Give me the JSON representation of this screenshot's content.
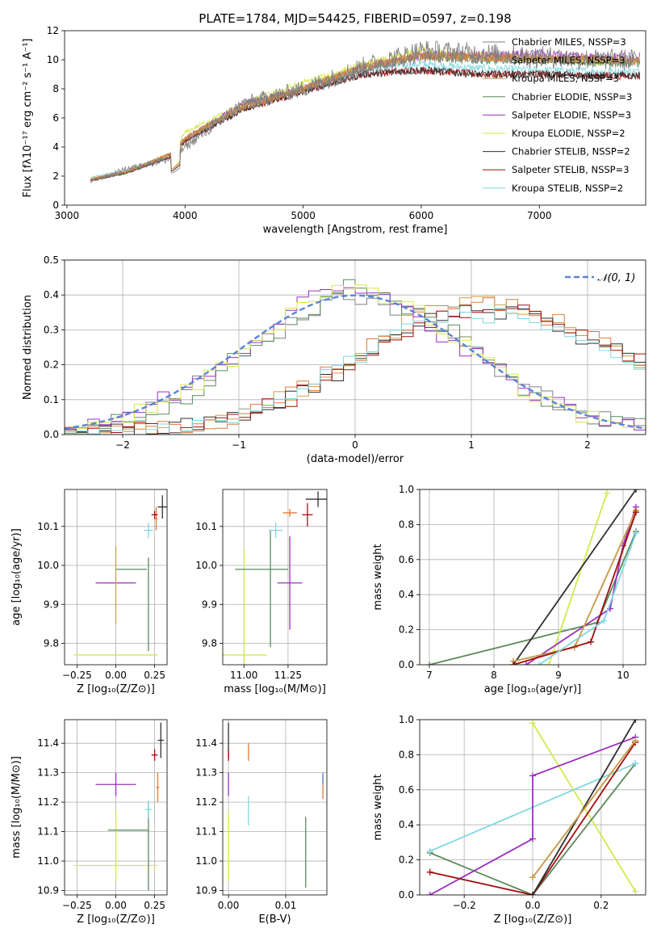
{
  "chart_data": [
    {
      "type": "line",
      "title": "PLATE=1784, MJD=54425, FIBERID=0597, z=0.198",
      "xlabel": "wavelength [Angstrom, rest frame]",
      "ylabel": "Flux [fλ10⁻¹⁷ erg cm⁻² s⁻¹ A⁻¹]",
      "xlim": [
        2980,
        7900
      ],
      "ylim": [
        0,
        12
      ],
      "xticks": [
        "3000",
        "4000",
        "5000",
        "6000",
        "7000"
      ],
      "yticks": [
        "0",
        "2",
        "4",
        "6",
        "8",
        "10",
        "12"
      ],
      "legend_position": "right",
      "spectrum_note_points_x": [
        3200,
        3500,
        3900,
        4000,
        4500,
        5000,
        5500,
        6000,
        6500,
        7000,
        7500,
        7800
      ],
      "series": [
        {
          "name": "Chabrier MILES, NSSP=3",
          "color": "#808080",
          "y": [
            1.6,
            2.5,
            3.2,
            4.0,
            7.0,
            8.0,
            9.5,
            10.6,
            10.4,
            10.2,
            10.0,
            10.0
          ]
        },
        {
          "name": "Salpeter MILES, NSSP=3",
          "color": "#e07b39",
          "y": [
            1.8,
            2.3,
            3.6,
            4.6,
            6.8,
            8.0,
            9.5,
            10.3,
            10.2,
            10.1,
            10.0,
            9.9
          ]
        },
        {
          "name": "Kroupa MILES, NSSP=3",
          "color": "#c8a050",
          "y": [
            1.8,
            2.3,
            3.6,
            4.6,
            6.8,
            8.0,
            9.5,
            10.3,
            10.2,
            10.1,
            10.0,
            9.9
          ]
        },
        {
          "name": "Chabrier ELODIE, NSSP=3",
          "color": "#5a8a5a",
          "y": [
            1.8,
            2.2,
            3.6,
            4.6,
            6.8,
            8.0,
            9.4,
            10.2,
            10.0,
            10.0,
            9.8,
            9.8
          ]
        },
        {
          "name": "Salpeter ELODIE, NSSP=3",
          "color": "#9a30c0",
          "y": [
            1.8,
            2.3,
            3.6,
            4.6,
            7.0,
            8.0,
            9.4,
            10.3,
            10.3,
            10.4,
            10.2,
            10.2
          ]
        },
        {
          "name": "Kroupa ELODIE, NSSP=2",
          "color": "#d4e84a",
          "y": [
            1.8,
            2.3,
            3.6,
            5.0,
            7.0,
            8.4,
            9.6,
            10.6,
            10.3,
            10.0,
            9.9,
            9.9
          ]
        },
        {
          "name": "Chabrier STELIB, NSSP=2",
          "color": "#303030",
          "y": [
            1.7,
            2.2,
            3.4,
            4.4,
            6.6,
            7.8,
            9.0,
            9.3,
            9.0,
            9.0,
            8.9,
            8.9
          ]
        },
        {
          "name": "Salpeter STELIB, NSSP=3",
          "color": "#a01010",
          "y": [
            1.7,
            2.2,
            3.4,
            4.4,
            6.6,
            7.8,
            9.0,
            9.3,
            9.0,
            9.0,
            8.9,
            8.9
          ]
        },
        {
          "name": "Kroupa STELIB, NSSP=2",
          "color": "#80d8e0",
          "y": [
            1.9,
            2.4,
            3.6,
            4.6,
            6.9,
            8.0,
            9.4,
            9.7,
            9.4,
            9.3,
            9.2,
            9.2
          ]
        }
      ]
    },
    {
      "type": "line",
      "xlabel": "(data-model)/error",
      "ylabel": "Normed distribution",
      "xlim": [
        -2.5,
        2.5
      ],
      "ylim": [
        0,
        0.5
      ],
      "xticks": [
        "−2",
        "−1",
        "0",
        "1",
        "2"
      ],
      "yticks": [
        "0.0",
        "0.1",
        "0.2",
        "0.3",
        "0.4",
        "0.5"
      ],
      "legend": "𝒩(0, 1)",
      "legend_position": "top-right",
      "gaussian_color": "#5b84d6",
      "x": [
        -2.5,
        -2.0,
        -1.5,
        -1.0,
        -0.5,
        0.0,
        0.5,
        1.0,
        1.5,
        2.0,
        2.5
      ],
      "series": [
        {
          "name": "Chabrier MILES",
          "color": "#808080",
          "values": [
            0.01,
            0.05,
            0.12,
            0.23,
            0.33,
            0.4,
            0.35,
            0.25,
            0.13,
            0.06,
            0.03
          ]
        },
        {
          "name": "Salpeter MILES",
          "color": "#e07b39",
          "values": [
            0.0,
            0.01,
            0.02,
            0.05,
            0.12,
            0.22,
            0.33,
            0.38,
            0.36,
            0.28,
            0.2
          ]
        },
        {
          "name": "Kroupa MILES",
          "color": "#c8a050",
          "values": [
            0.0,
            0.01,
            0.02,
            0.05,
            0.12,
            0.22,
            0.33,
            0.38,
            0.36,
            0.28,
            0.2
          ]
        },
        {
          "name": "Chabrier ELODIE",
          "color": "#5a8a5a",
          "values": [
            0.01,
            0.04,
            0.1,
            0.22,
            0.33,
            0.43,
            0.36,
            0.26,
            0.12,
            0.05,
            0.02
          ]
        },
        {
          "name": "Salpeter ELODIE",
          "color": "#9a30c0",
          "values": [
            0.01,
            0.06,
            0.12,
            0.24,
            0.38,
            0.42,
            0.34,
            0.24,
            0.12,
            0.05,
            0.02
          ]
        },
        {
          "name": "Kroupa ELODIE",
          "color": "#d4e84a",
          "values": [
            0.01,
            0.05,
            0.12,
            0.22,
            0.35,
            0.44,
            0.36,
            0.24,
            0.11,
            0.05,
            0.02
          ]
        },
        {
          "name": "Chabrier STELIB",
          "color": "#303030",
          "values": [
            0.0,
            0.01,
            0.02,
            0.05,
            0.11,
            0.2,
            0.31,
            0.36,
            0.35,
            0.27,
            0.22
          ]
        },
        {
          "name": "Salpeter STELIB",
          "color": "#a01010",
          "values": [
            0.0,
            0.01,
            0.02,
            0.05,
            0.11,
            0.2,
            0.31,
            0.36,
            0.35,
            0.27,
            0.22
          ]
        },
        {
          "name": "Kroupa STELIB",
          "color": "#80d8e0",
          "values": [
            0.0,
            0.01,
            0.02,
            0.05,
            0.12,
            0.22,
            0.32,
            0.35,
            0.33,
            0.27,
            0.18
          ]
        }
      ]
    },
    {
      "type": "scatter",
      "xlabel": "Z [log₁₀(Z/Z⊙)]",
      "ylabel": "age  [log₁₀(age/yr)]",
      "xlim": [
        -0.33,
        0.33
      ],
      "ylim": [
        9.745,
        10.195
      ],
      "xticks": [
        "−0.25",
        "0.00",
        "0.25"
      ],
      "yticks": [
        "9.8",
        "9.9",
        "10.0",
        "10.1"
      ],
      "points": [
        {
          "color": "#d4e84a",
          "x": 0.0,
          "y": 9.77,
          "xerr": 0.27,
          "yerr": 0.0
        },
        {
          "color": "#9a30c0",
          "x": 0.0,
          "y": 9.955,
          "xerr": 0.13,
          "yerr": 0.0
        },
        {
          "color": "#5a8a5a",
          "x": 0.1,
          "y": 9.99,
          "xerr": 0.1,
          "yerr": 0.0
        },
        {
          "color": "#c8a050",
          "x": 0.0,
          "y": 9.95,
          "xerr": 0.0,
          "yerr": 0.1
        },
        {
          "color": "#5a8a5a",
          "x": 0.21,
          "y": 9.9,
          "xerr": 0.0,
          "yerr": 0.12
        },
        {
          "color": "#80d8e0",
          "x": 0.21,
          "y": 10.09,
          "xerr": 0.03,
          "yerr": 0.02
        },
        {
          "color": "#e07b39",
          "x": 0.26,
          "y": 10.12,
          "xerr": 0.01,
          "yerr": 0.03
        },
        {
          "color": "#a01010",
          "x": 0.25,
          "y": 10.13,
          "xerr": 0.02,
          "yerr": 0.01
        },
        {
          "color": "#303030",
          "x": 0.3,
          "y": 10.15,
          "xerr": 0.03,
          "yerr": 0.03
        }
      ]
    },
    {
      "type": "scatter",
      "xlabel": "mass [log₁₀(M/M⊙)]",
      "ylabel": "",
      "xlim": [
        10.88,
        11.47
      ],
      "ylim": [
        9.745,
        10.195
      ],
      "xticks": [
        "11.00",
        "11.25"
      ],
      "yticks": [
        "9.8",
        "9.9",
        "10.0",
        "10.1"
      ],
      "points": [
        {
          "color": "#d4e84a",
          "x": 11.0,
          "y": 9.77,
          "xerr": 0.13,
          "yerr": 0.27
        },
        {
          "color": "#5a8a5a",
          "x": 11.1,
          "y": 9.99,
          "xerr": 0.15,
          "yerr": 0.0
        },
        {
          "color": "#5a8a5a",
          "x": 11.15,
          "y": 9.94,
          "xerr": 0.0,
          "yerr": 0.15
        },
        {
          "color": "#9a30c0",
          "x": 11.26,
          "y": 9.955,
          "xerr": 0.07,
          "yerr": 0.12
        },
        {
          "color": "#80d8e0",
          "x": 11.18,
          "y": 10.09,
          "xerr": 0.04,
          "yerr": 0.02
        },
        {
          "color": "#e07b39",
          "x": 11.26,
          "y": 10.135,
          "xerr": 0.04,
          "yerr": 0.01
        },
        {
          "color": "#a01010",
          "x": 11.36,
          "y": 10.13,
          "xerr": 0.03,
          "yerr": 0.03
        },
        {
          "color": "#303030",
          "x": 11.42,
          "y": 10.17,
          "xerr": 0.07,
          "yerr": 0.02
        }
      ]
    },
    {
      "type": "line",
      "xlabel": "age  [log₁₀(age/yr)]",
      "ylabel": "mass weight",
      "xlim": [
        6.85,
        10.35
      ],
      "ylim": [
        0,
        1
      ],
      "xticks": [
        "7",
        "8",
        "9",
        "10"
      ],
      "yticks": [
        "0.0",
        "0.2",
        "0.4",
        "0.6",
        "0.8",
        "1.0"
      ],
      "series": [
        {
          "color": "#5a8a5a",
          "x": [
            7.0,
            9.6,
            10.2
          ],
          "y": [
            0.0,
            0.24,
            0.76
          ]
        },
        {
          "color": "#d4e84a",
          "x": [
            8.85,
            9.75
          ],
          "y": [
            0.0,
            0.98
          ]
        },
        {
          "color": "#303030",
          "x": [
            8.3,
            10.2
          ],
          "y": [
            0.0,
            1.0
          ]
        },
        {
          "color": "#9a30c0",
          "x": [
            8.5,
            9.8,
            10.0,
            10.2
          ],
          "y": [
            0.0,
            0.32,
            0.68,
            0.9
          ]
        },
        {
          "color": "#e07b39",
          "x": [
            8.3,
            9.25,
            10.2
          ],
          "y": [
            0.02,
            0.1,
            0.88
          ]
        },
        {
          "color": "#c8a050",
          "x": [
            8.3,
            9.25,
            10.2
          ],
          "y": [
            0.02,
            0.1,
            0.88
          ]
        },
        {
          "color": "#a01010",
          "x": [
            8.3,
            9.5,
            10.2
          ],
          "y": [
            0.0,
            0.13,
            0.87
          ]
        },
        {
          "color": "#80d8e0",
          "x": [
            8.7,
            9.7,
            10.2
          ],
          "y": [
            0.0,
            0.25,
            0.75
          ]
        }
      ]
    },
    {
      "type": "scatter",
      "xlabel": "Z [log₁₀(Z/Z⊙)]",
      "ylabel": "mass [log₁₀(M/M⊙)]",
      "xlim": [
        -0.33,
        0.33
      ],
      "ylim": [
        10.885,
        11.48
      ],
      "xticks": [
        "−0.25",
        "0.00",
        "0.25"
      ],
      "yticks": [
        "10.9",
        "11.0",
        "11.1",
        "11.2",
        "11.3",
        "11.4"
      ],
      "points": [
        {
          "color": "#d4e84a",
          "x": 0.0,
          "y": 10.985,
          "xerr": 0.27,
          "yerr": 0.0
        },
        {
          "color": "#d4e84a",
          "x": 0.0,
          "y": 11.05,
          "xerr": 0.0,
          "yerr": 0.12
        },
        {
          "color": "#5a8a5a",
          "x": 0.08,
          "y": 11.105,
          "xerr": 0.13,
          "yerr": 0.0
        },
        {
          "color": "#5a8a5a",
          "x": 0.21,
          "y": 11.05,
          "xerr": 0.0,
          "yerr": 0.15
        },
        {
          "color": "#9a30c0",
          "x": 0.0,
          "y": 11.26,
          "xerr": 0.13,
          "yerr": 0.04
        },
        {
          "color": "#80d8e0",
          "x": 0.21,
          "y": 11.175,
          "xerr": 0.02,
          "yerr": 0.03
        },
        {
          "color": "#e07b39",
          "x": 0.27,
          "y": 11.25,
          "xerr": 0.01,
          "yerr": 0.05
        },
        {
          "color": "#a01010",
          "x": 0.25,
          "y": 11.36,
          "xerr": 0.02,
          "yerr": 0.02
        },
        {
          "color": "#303030",
          "x": 0.29,
          "y": 11.41,
          "xerr": 0.02,
          "yerr": 0.06
        }
      ]
    },
    {
      "type": "scatter",
      "xlabel": "E(B-V)",
      "ylabel": "",
      "xlim": [
        -0.001,
        0.0172
      ],
      "ylim": [
        10.885,
        11.48
      ],
      "xticks": [
        "0.00",
        "0.01"
      ],
      "yticks": [
        "10.9",
        "11.0",
        "11.1",
        "11.2",
        "11.3",
        "11.4"
      ],
      "points": [
        {
          "color": "#d4e84a",
          "x": 0.0,
          "y": 11.05,
          "xerr": 0.0,
          "yerr": 0.12
        },
        {
          "color": "#9a30c0",
          "x": 0.0,
          "y": 11.26,
          "xerr": 0.0,
          "yerr": 0.04
        },
        {
          "color": "#303030",
          "x": 0.0,
          "y": 11.41,
          "xerr": 0.0,
          "yerr": 0.06
        },
        {
          "color": "#a01010",
          "x": 0.0,
          "y": 11.36,
          "xerr": 0.0,
          "yerr": 0.02
        },
        {
          "color": "#e07b39",
          "x": 0.0035,
          "y": 11.37,
          "xerr": 0.0,
          "yerr": 0.03
        },
        {
          "color": "#80d8e0",
          "x": 0.0035,
          "y": 11.17,
          "xerr": 0.0,
          "yerr": 0.05
        },
        {
          "color": "#5a8a5a",
          "x": 0.0135,
          "y": 11.03,
          "xerr": 0.0,
          "yerr": 0.12
        },
        {
          "color": "#e07b39",
          "x": 0.0165,
          "y": 11.25,
          "xerr": 0.0,
          "yerr": 0.04
        },
        {
          "color": "#5b84d6",
          "x": 0.0165,
          "y": 11.28,
          "xerr": 0.0,
          "yerr": 0.02
        }
      ]
    },
    {
      "type": "line",
      "xlabel": "Z [log₁₀(Z/Z⊙)]",
      "ylabel": "mass weight",
      "xlim": [
        -0.33,
        0.33
      ],
      "ylim": [
        0,
        1
      ],
      "xticks": [
        "−0.2",
        "0.0",
        "0.2"
      ],
      "yticks": [
        "0.0",
        "0.2",
        "0.4",
        "0.6",
        "0.8",
        "1.0"
      ],
      "series": [
        {
          "color": "#d4e84a",
          "x": [
            0.0,
            0.3
          ],
          "y": [
            0.98,
            0.02
          ]
        },
        {
          "color": "#5a8a5a",
          "x": [
            -0.3,
            0.0,
            0.3
          ],
          "y": [
            0.24,
            0.0,
            0.75
          ]
        },
        {
          "color": "#80d8e0",
          "x": [
            -0.3,
            0.3
          ],
          "y": [
            0.25,
            0.75
          ]
        },
        {
          "color": "#9a30c0",
          "x": [
            -0.3,
            0.0,
            0.0,
            0.3
          ],
          "y": [
            0.0,
            0.32,
            0.68,
            0.9
          ]
        },
        {
          "color": "#a01010",
          "x": [
            -0.3,
            0.0,
            0.3
          ],
          "y": [
            0.13,
            0.0,
            0.87
          ]
        },
        {
          "color": "#303030",
          "x": [
            0.0,
            0.3
          ],
          "y": [
            0.0,
            1.0
          ]
        },
        {
          "color": "#e07b39",
          "x": [
            0.0,
            0.3
          ],
          "y": [
            0.1,
            0.88
          ]
        },
        {
          "color": "#c8a050",
          "x": [
            0.0,
            0.3
          ],
          "y": [
            0.1,
            0.88
          ]
        }
      ]
    }
  ]
}
